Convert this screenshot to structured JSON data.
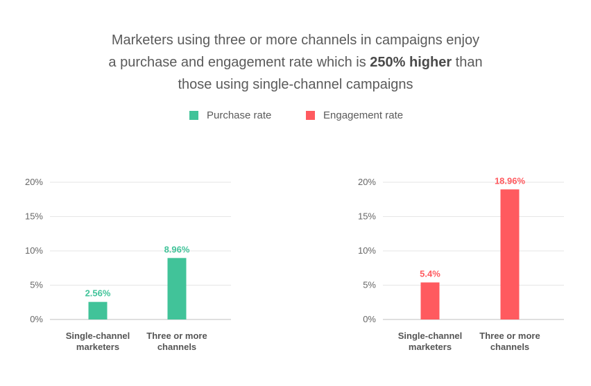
{
  "title": {
    "line1": "Marketers using three or more channels in campaigns enjoy",
    "line2_before": "a purchase and engagement rate which is ",
    "line2_bold": "250% higher",
    "line2_after": " than",
    "line3": "those using single-channel campaigns"
  },
  "legend": [
    {
      "label": "Purchase rate",
      "color": "#41c399"
    },
    {
      "label": "Engagement rate",
      "color": "#ff5a5f"
    }
  ],
  "chart_data": [
    {
      "type": "bar",
      "series": [
        {
          "name": "Purchase rate",
          "values": [
            2.56,
            8.96
          ],
          "color": "#41c399"
        }
      ],
      "categories": [
        [
          "Single-channel",
          "marketers"
        ],
        [
          "Three or more",
          "channels"
        ]
      ],
      "data_labels": [
        "2.56%",
        "8.96%"
      ],
      "yticks": [
        "0%",
        "5%",
        "10%",
        "15%",
        "20%"
      ],
      "ylim": [
        0,
        20
      ],
      "grid": true
    },
    {
      "type": "bar",
      "series": [
        {
          "name": "Engagement rate",
          "values": [
            5.4,
            18.96
          ],
          "color": "#ff5a5f"
        }
      ],
      "categories": [
        [
          "Single-channel",
          "marketers"
        ],
        [
          "Three or more",
          "channels"
        ]
      ],
      "data_labels": [
        "5.4%",
        "18.96%"
      ],
      "yticks": [
        "0%",
        "5%",
        "10%",
        "15%",
        "20%"
      ],
      "ylim": [
        0,
        20
      ],
      "grid": true
    }
  ]
}
